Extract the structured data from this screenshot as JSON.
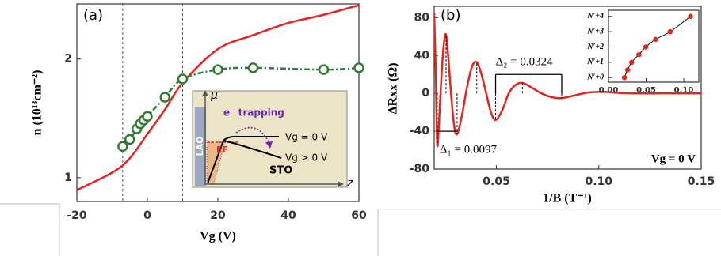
{
  "chart_data": [
    {
      "type": "line",
      "panel_label": "(a)",
      "xlabel": "Vg (V)",
      "ylabel": "n (10¹³cm⁻²)",
      "xlim": [
        -20,
        60
      ],
      "xticks": [
        -20,
        0,
        20,
        40,
        60
      ],
      "ylim": [
        0.87,
        2.76
      ],
      "yticks": [
        1,
        2
      ],
      "log_y": true,
      "vlines": [
        -7,
        10
      ],
      "smooth": true,
      "series": [
        {
          "color": "#e8221c",
          "style": "solid",
          "x": [
            -20,
            -10,
            -5,
            0,
            5,
            10,
            20,
            30,
            40,
            50,
            60
          ],
          "values": [
            0.93,
            1.03,
            1.12,
            1.29,
            1.49,
            1.74,
            2.12,
            2.3,
            2.47,
            2.59,
            2.74
          ]
        },
        {
          "color": "#2e7d32",
          "style": "dash-dot",
          "marker": "open-circle",
          "x": [
            -7,
            -5,
            -3,
            -2,
            -1,
            0,
            5,
            10,
            20,
            30,
            50,
            60
          ],
          "values": [
            1.2,
            1.25,
            1.33,
            1.37,
            1.4,
            1.43,
            1.6,
            1.78,
            1.88,
            1.9,
            1.88,
            1.9
          ]
        }
      ],
      "inset": {
        "axis_y": "μ",
        "axis_x": "z",
        "trapping": "e⁻ trapping",
        "layer": "LAO",
        "fermi": "EF",
        "curve_0": "Vg = 0 V",
        "curve_1": "Vg > 0 V",
        "substrate": "STO"
      }
    },
    {
      "type": "line",
      "panel_label": "(b)",
      "xlabel": "1/B (T⁻¹)",
      "ylabel": "ΔRxx (Ω)",
      "xlim": [
        0.0196,
        0.15
      ],
      "xticks": [
        0.05,
        {
          "value": 0.1,
          "label": "0.10"
        },
        0.15
      ],
      "ylim": [
        -80,
        92
      ],
      "yticks": [
        -80,
        -40,
        0,
        40,
        80
      ],
      "smooth": true,
      "drop_lines": true,
      "series": [
        {
          "color": "#e8221c",
          "style": "solid",
          "x": [
            0.0196,
            0.0204,
            0.0211,
            0.0222,
            0.0232,
            0.0243,
            0.0254,
            0.0266,
            0.028,
            0.0294,
            0.0308,
            0.033,
            0.0355,
            0.038,
            0.0404,
            0.0427,
            0.045,
            0.0473,
            0.0496,
            0.0528,
            0.056,
            0.0594,
            0.0627,
            0.0673,
            0.072,
            0.077,
            0.0819,
            0.0885,
            0.095,
            0.102,
            0.11,
            0.12,
            0.13,
            0.15
          ],
          "values": [
            85,
            20,
            -55,
            -20,
            20,
            52,
            62,
            35,
            -5,
            -35,
            -43,
            -25,
            5,
            28,
            33,
            20,
            0,
            -20,
            -28,
            -18,
            0,
            9,
            11,
            6,
            0,
            -4,
            -5,
            -2,
            1,
            1.5,
            0.5,
            0,
            0,
            0
          ]
        }
      ],
      "brackets": [
        {
          "label": "Δ₁ = 0.0097",
          "x": [
            0.0211,
            0.0308
          ],
          "y": -40
        },
        {
          "label": "Δ₂ = 0.0324",
          "x": [
            0.0496,
            0.0819
          ],
          "y": 20
        }
      ],
      "note": "Vg = 0 V"
    },
    {
      "type": "line",
      "xlim": [
        0,
        0.12
      ],
      "xticks": [
        {
          "value": 0,
          "label": "0.00"
        },
        0.05,
        {
          "value": 0.1,
          "label": "0.10"
        }
      ],
      "ylim": [
        -0.3,
        4.4
      ],
      "yticks": [
        {
          "value": 0,
          "label": "N′+0"
        },
        {
          "value": 1,
          "label": "N′+1"
        },
        {
          "value": 2,
          "label": "N′+2"
        },
        {
          "value": 3,
          "label": "N′+3"
        },
        {
          "value": 4,
          "label": "N′+4"
        }
      ],
      "smooth": true,
      "series": [
        {
          "color": "#e8221c",
          "line_color": "#000000",
          "style": "solid",
          "marker": "dot",
          "x": [
            0.0211,
            0.0254,
            0.0308,
            0.0404,
            0.0496,
            0.0627,
            0.0819,
            0.109
          ],
          "values": [
            0,
            0.5,
            1,
            1.5,
            2,
            2.5,
            3,
            4
          ]
        }
      ]
    }
  ]
}
